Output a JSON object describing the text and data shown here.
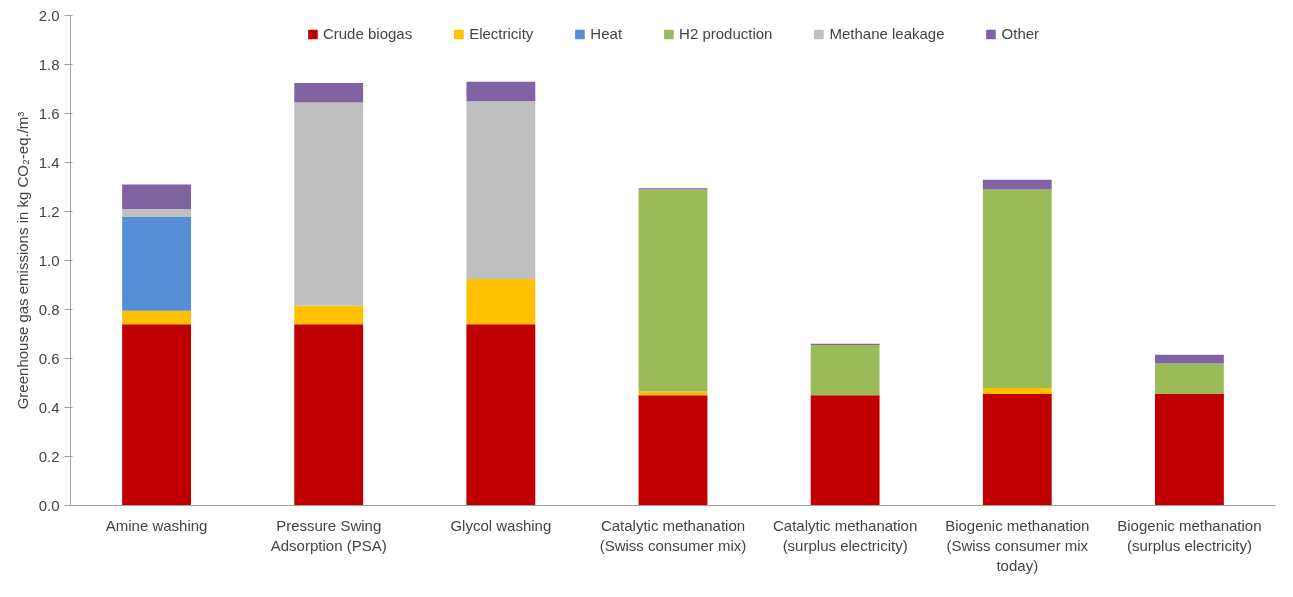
{
  "chart_data": {
    "type": "bar",
    "stacked": true,
    "ylabel": "Greenhouse gas emissions in kg CO₂-eq./m³",
    "categories": [
      "Amine washing",
      "Pressure Swing Adsorption (PSA)",
      "Glycol washing",
      "Catalytic methanation (Swiss consumer mix)",
      "Catalytic methanation (surplus electricity)",
      "Biogenic methanation (Swiss consumer mix today)",
      "Biogenic methanation (surplus electricity)"
    ],
    "series": [
      {
        "name": "Crude biogas",
        "color": "#c00000",
        "values": [
          0.74,
          0.74,
          0.74,
          0.45,
          0.45,
          0.455,
          0.455
        ]
      },
      {
        "name": "Electricity",
        "color": "#ffc000",
        "values": [
          0.055,
          0.075,
          0.185,
          0.015,
          0,
          0.025,
          0
        ]
      },
      {
        "name": "Heat",
        "color": "#558ed5",
        "values": [
          0.385,
          0,
          0,
          0,
          0,
          0,
          0
        ]
      },
      {
        "name": "H2 production",
        "color": "#9bbb59",
        "values": [
          0,
          0,
          0,
          0.825,
          0.205,
          0.81,
          0.125
        ]
      },
      {
        "name": "Methane leakage",
        "color": "#bfbfbf",
        "values": [
          0.03,
          0.83,
          0.725,
          0,
          0,
          0,
          0
        ]
      },
      {
        "name": "Other",
        "color": "#8064a2",
        "values": [
          0.1,
          0.08,
          0.08,
          0.005,
          0.005,
          0.04,
          0.035
        ]
      }
    ],
    "ylim": [
      0,
      2
    ],
    "yticks": [
      {
        "value": 0,
        "label": "0.0"
      },
      {
        "value": 0.2,
        "label": "0.2"
      },
      {
        "value": 0.4,
        "label": "0.4"
      },
      {
        "value": 0.6,
        "label": "0.6"
      },
      {
        "value": 0.8,
        "label": "0.8"
      },
      {
        "value": 1,
        "label": "1.0"
      },
      {
        "value": 1.2,
        "label": "1.2"
      },
      {
        "value": 1.4,
        "label": "1.4"
      },
      {
        "value": 1.6,
        "label": "1.6"
      },
      {
        "value": 1.8,
        "label": "1.8"
      },
      {
        "value": 2,
        "label": "2.0"
      }
    ],
    "grid": false,
    "legend": "top"
  }
}
